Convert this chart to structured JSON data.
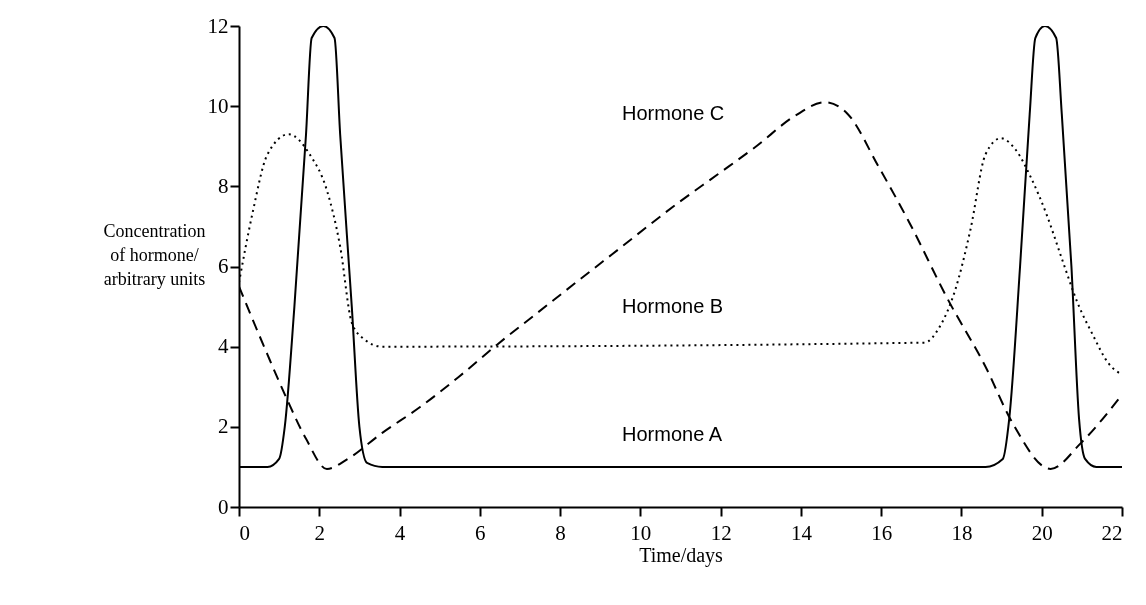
{
  "chart_data": {
    "type": "line",
    "xlabel": "Time/days",
    "ylabel": "Concentration\nof hormone/\narbitrary units",
    "xlim": [
      0,
      22
    ],
    "xticks": [
      0,
      2,
      4,
      6,
      8,
      10,
      12,
      14,
      16,
      18,
      20,
      22
    ],
    "ylim": [
      0,
      12
    ],
    "yticks": [
      0,
      2,
      4,
      6,
      8,
      10,
      12
    ],
    "grid": false,
    "legend": false,
    "marker": "none",
    "series": [
      {
        "name": "Hormone A",
        "color": "#000000",
        "line_style": "solid",
        "x": [
          0,
          0.71,
          1.0,
          1.14,
          1.38,
          1.67,
          1.81,
          2.1,
          2.38,
          2.52,
          2.81,
          3.0,
          3.19,
          3.57,
          18.6,
          19.03,
          19.19,
          19.46,
          19.7,
          19.84,
          20.08,
          20.36,
          20.5,
          20.74,
          20.93,
          21.08,
          21.36,
          22
        ],
        "values": [
          1,
          1,
          1.2,
          2,
          5,
          9.3,
          11.7,
          12,
          11.7,
          9.3,
          5,
          2,
          1.1,
          1,
          1,
          1.2,
          2.2,
          6,
          9.8,
          11.7,
          12,
          11.7,
          9.8,
          6,
          2.2,
          1.2,
          1,
          1
        ]
      },
      {
        "name": "Hormone B",
        "color": "#000000",
        "line_style": "dotted",
        "x": [
          0,
          0.33,
          0.71,
          1.24,
          1.76,
          2.19,
          2.52,
          2.81,
          3.1,
          3.57,
          17.08,
          17.46,
          17.84,
          18.22,
          18.6,
          18.98,
          19.36,
          19.74,
          20.12,
          20.5,
          20.89,
          21.27,
          21.65,
          22
        ],
        "values": [
          5.6,
          7.3,
          8.8,
          9.3,
          8.8,
          7.9,
          6.5,
          4.6,
          4.2,
          4,
          4.1,
          4.5,
          5.4,
          6.9,
          8.8,
          9.2,
          8.9,
          8.2,
          7.3,
          6.2,
          5.1,
          4.3,
          3.6,
          3.3
        ]
      },
      {
        "name": "Hormone C",
        "color": "#000000",
        "line_style": "dashed",
        "x": [
          0,
          0.71,
          1.19,
          1.67,
          2.19,
          2.71,
          3.57,
          4.52,
          5.48,
          6.43,
          7.38,
          8.33,
          9.29,
          10.96,
          11.93,
          12.89,
          13.84,
          14.6,
          15.17,
          15.93,
          16.7,
          17.65,
          18.6,
          19.27,
          20.22,
          20.98,
          22
        ],
        "values": [
          5.5,
          3.8,
          2.7,
          1.7,
          0.95,
          1.2,
          1.85,
          2.5,
          3.25,
          4.05,
          4.8,
          5.55,
          6.3,
          7.6,
          8.3,
          9.0,
          9.75,
          10.1,
          9.8,
          8.5,
          7.1,
          5.2,
          3.5,
          2.1,
          0.95,
          1.6,
          2.8
        ]
      }
    ]
  }
}
